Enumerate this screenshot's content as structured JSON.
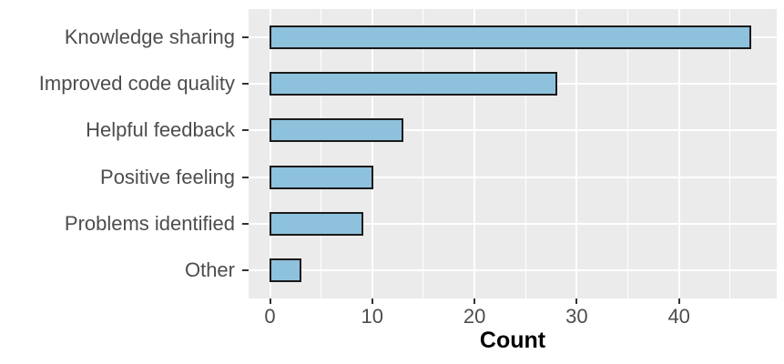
{
  "chart_data": {
    "type": "bar",
    "orientation": "horizontal",
    "categories": [
      "Knowledge sharing",
      "Improved code quality",
      "Helpful feedback",
      "Positive feeling",
      "Problems identified",
      "Other"
    ],
    "values": [
      47,
      28,
      13,
      10,
      9,
      3
    ],
    "title": "",
    "xlabel": "Count",
    "ylabel": "",
    "x_ticks": [
      0,
      10,
      20,
      30,
      40
    ],
    "x_minor_ticks": [
      5,
      15,
      25,
      35,
      45
    ],
    "xlim": [
      -2.1,
      49.6
    ],
    "grid": "major-and-minor-x, major-y, white on gray panel",
    "legend": "none",
    "colors": {
      "bar_fill": "#8EC1DC",
      "bar_border": "#1A1A1A",
      "panel_background": "#EBEBEB",
      "gridline": "#FFFFFF",
      "axis_text": "#4D4D4D",
      "axis_title": "#000000",
      "tick_mark": "#333333"
    }
  }
}
